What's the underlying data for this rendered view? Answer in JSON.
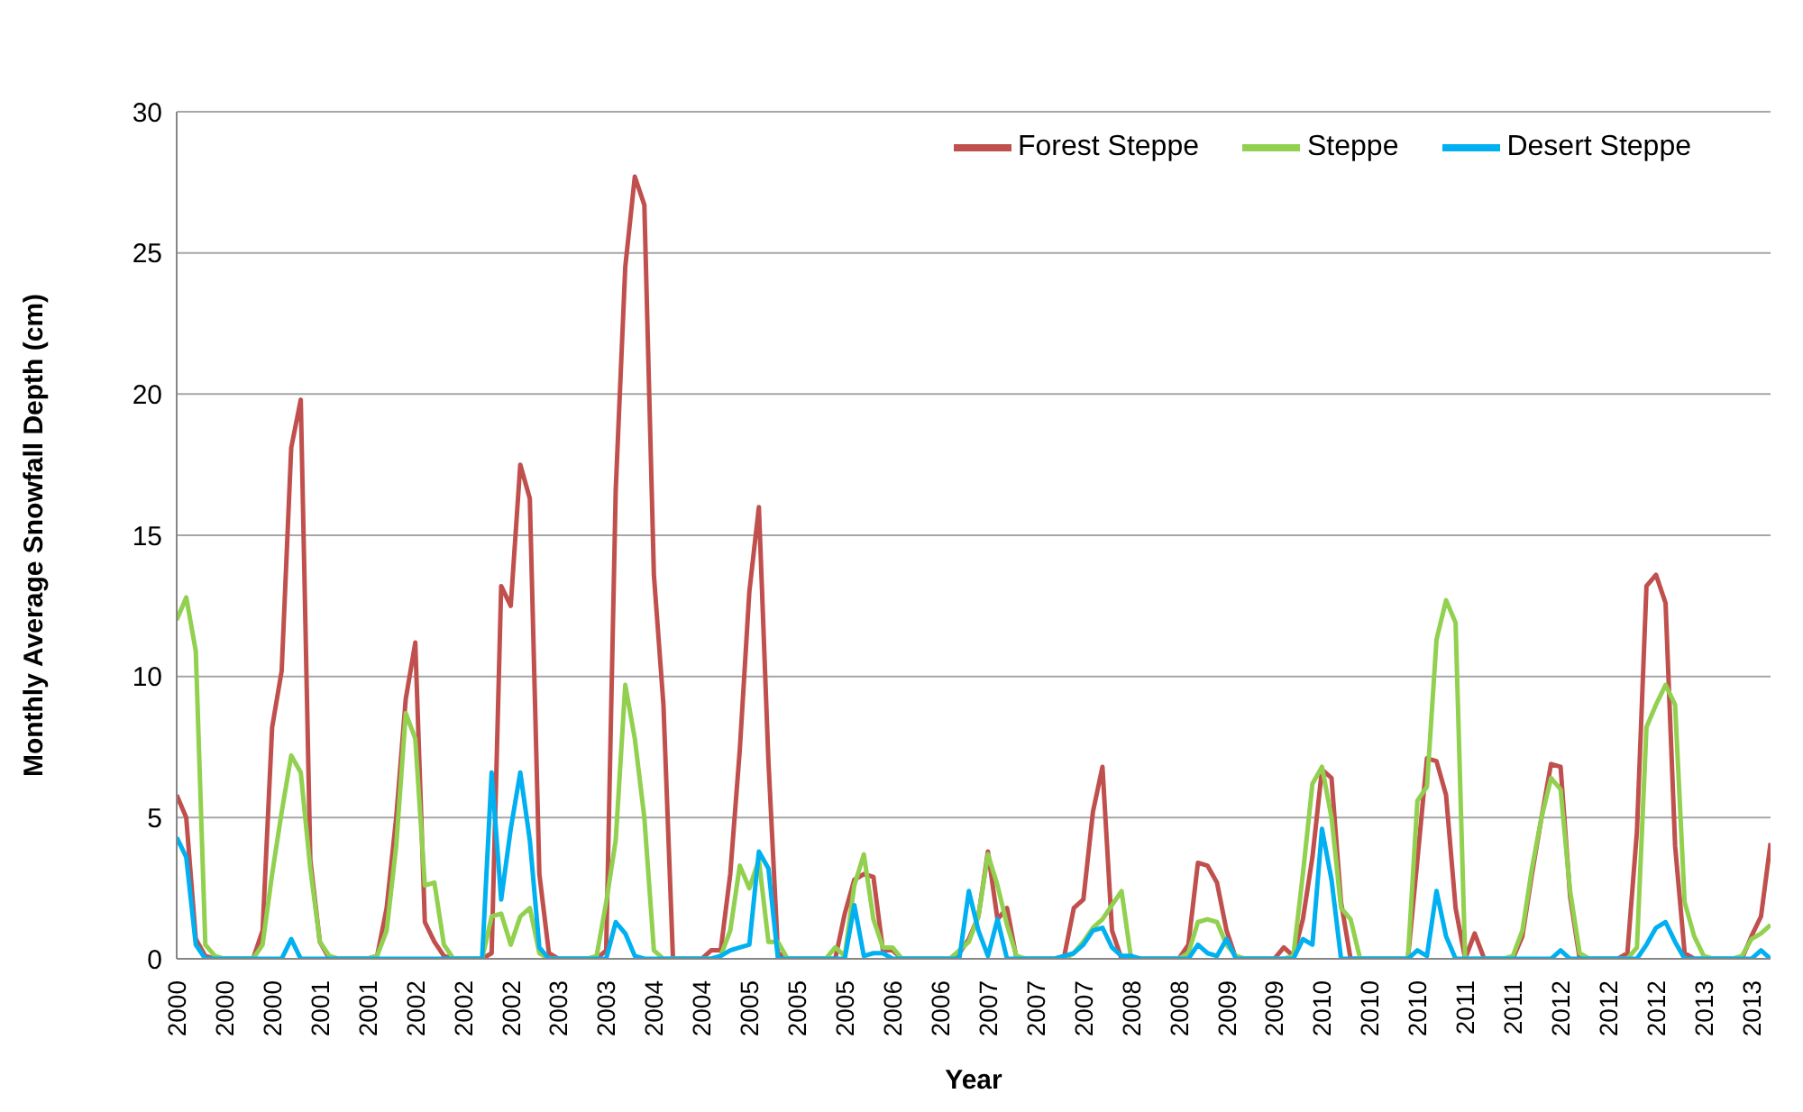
{
  "chart_data": {
    "type": "line",
    "xlabel": "Year",
    "ylabel": "Monthly Average Snowfall Depth (cm)",
    "categories": [
      "2000",
      null,
      null,
      null,
      null,
      "2000",
      null,
      null,
      null,
      null,
      "2000",
      null,
      null,
      null,
      null,
      "2001",
      null,
      null,
      null,
      null,
      "2001",
      null,
      null,
      null,
      null,
      "2002",
      null,
      null,
      null,
      null,
      "2002",
      null,
      null,
      null,
      null,
      "2002",
      null,
      null,
      null,
      null,
      "2003",
      null,
      null,
      null,
      null,
      "2003",
      null,
      null,
      null,
      null,
      "2004",
      null,
      null,
      null,
      null,
      "2004",
      null,
      null,
      null,
      null,
      "2005",
      null,
      null,
      null,
      null,
      "2005",
      null,
      null,
      null,
      null,
      "2005",
      null,
      null,
      null,
      null,
      "2006",
      null,
      null,
      null,
      null,
      "2006",
      null,
      null,
      null,
      null,
      "2007",
      null,
      null,
      null,
      null,
      "2007",
      null,
      null,
      null,
      null,
      "2007",
      null,
      null,
      null,
      null,
      "2008",
      null,
      null,
      null,
      null,
      "2008",
      null,
      null,
      null,
      null,
      "2009",
      null,
      null,
      null,
      null,
      "2009",
      null,
      null,
      null,
      null,
      "2010",
      null,
      null,
      null,
      null,
      "2010",
      null,
      null,
      null,
      null,
      "2010",
      null,
      null,
      null,
      null,
      "2011",
      null,
      null,
      null,
      null,
      "2011",
      null,
      null,
      null,
      null,
      "2012",
      null,
      null,
      null,
      null,
      "2012",
      null,
      null,
      null,
      null,
      "2012",
      null,
      null,
      null,
      null,
      "2013",
      null,
      null,
      null,
      null,
      "2013",
      null,
      null
    ],
    "series": [
      {
        "name": "Forest Steppe",
        "color": "#c0504d",
        "values": [
          5.8,
          5.0,
          0.7,
          0.1,
          0,
          0,
          0,
          0,
          0,
          1.0,
          8.2,
          10.2,
          18.1,
          19.8,
          3.5,
          0.6,
          0,
          0,
          0,
          0,
          0,
          0.1,
          1.8,
          5.0,
          9.2,
          11.2,
          1.3,
          0.6,
          0.1,
          0,
          0,
          0,
          0,
          0.2,
          13.2,
          12.5,
          17.5,
          16.3,
          3.0,
          0.2,
          0,
          0,
          0,
          0,
          0,
          0.3,
          16.6,
          24.5,
          27.7,
          26.7,
          13.6,
          9.0,
          0,
          0,
          0,
          0,
          0.3,
          0.3,
          3.0,
          7.4,
          13.0,
          16.0,
          7.0,
          0.2,
          0,
          0,
          0,
          0,
          0,
          0,
          1.6,
          2.8,
          3.0,
          2.9,
          0.3,
          0.3,
          0,
          0,
          0,
          0,
          0,
          0,
          0.2,
          0.7,
          1.5,
          3.8,
          1.4,
          1.8,
          0,
          0,
          0,
          0,
          0,
          0.1,
          1.8,
          2.1,
          5.2,
          6.8,
          1.0,
          0,
          0,
          0,
          0,
          0,
          0,
          0,
          0.5,
          3.4,
          3.3,
          2.7,
          1.0,
          0,
          0,
          0,
          0,
          0,
          0.4,
          0.1,
          1.4,
          3.6,
          6.7,
          6.4,
          2.0,
          0,
          0,
          0,
          0,
          0,
          0,
          0,
          3.5,
          7.1,
          7.0,
          5.8,
          1.8,
          0,
          0.9,
          0,
          0,
          0,
          0,
          0.8,
          3.0,
          5.0,
          6.9,
          6.8,
          2.2,
          0,
          0,
          0,
          0,
          0,
          0.2,
          4.5,
          13.2,
          13.6,
          12.6,
          4.0,
          0.2,
          0,
          0,
          0,
          0,
          0,
          0,
          0.8,
          1.5,
          4.1
        ]
      },
      {
        "name": "Steppe",
        "color": "#92d050",
        "values": [
          12.0,
          12.8,
          10.9,
          0.5,
          0.1,
          0,
          0,
          0,
          0,
          0.5,
          3.0,
          5.2,
          7.2,
          6.6,
          3.2,
          0.6,
          0.1,
          0,
          0,
          0,
          0,
          0.1,
          1.0,
          4.0,
          8.7,
          7.8,
          2.6,
          2.7,
          0.5,
          0,
          0,
          0,
          0,
          1.5,
          1.6,
          0.5,
          1.5,
          1.8,
          0.2,
          0,
          0,
          0,
          0,
          0,
          0.1,
          2.0,
          4.2,
          9.7,
          7.8,
          5.0,
          0.3,
          0,
          0,
          0,
          0,
          0,
          0,
          0.1,
          1.0,
          3.3,
          2.5,
          3.5,
          0.6,
          0.6,
          0,
          0,
          0,
          0,
          0,
          0.4,
          0.1,
          2.6,
          3.7,
          1.4,
          0.4,
          0.4,
          0,
          0,
          0,
          0,
          0,
          0,
          0.3,
          0.6,
          1.5,
          3.7,
          2.6,
          1.2,
          0.1,
          0,
          0,
          0,
          0,
          0,
          0.2,
          0.6,
          1.1,
          1.4,
          1.9,
          2.4,
          0,
          0,
          0,
          0,
          0,
          0,
          0.2,
          1.3,
          1.4,
          1.3,
          0.5,
          0.1,
          0,
          0,
          0,
          0,
          0,
          0.1,
          3.0,
          6.2,
          6.8,
          5.0,
          1.8,
          1.4,
          0,
          0,
          0,
          0,
          0,
          0,
          5.6,
          6.1,
          11.3,
          12.7,
          11.9,
          0,
          0,
          0,
          0,
          0,
          0.1,
          1.0,
          3.2,
          5.0,
          6.4,
          6.0,
          2.4,
          0.2,
          0,
          0,
          0,
          0,
          0,
          0.4,
          8.2,
          9.0,
          9.7,
          9.0,
          2.0,
          0.8,
          0.1,
          0,
          0,
          0,
          0.1,
          0.7,
          0.9,
          1.2
        ]
      },
      {
        "name": "Desert Steppe",
        "color": "#00b0f0",
        "values": [
          4.3,
          3.6,
          0.5,
          0,
          0,
          0,
          0,
          0,
          0,
          0,
          0,
          0,
          0.7,
          0,
          0,
          0,
          0,
          0,
          0,
          0,
          0,
          0,
          0,
          0,
          0,
          0,
          0,
          0,
          0,
          0,
          0,
          0,
          0,
          6.6,
          2.1,
          4.6,
          6.6,
          4.2,
          0.4,
          0,
          0,
          0,
          0,
          0,
          0,
          0,
          1.3,
          0.9,
          0.1,
          0,
          0,
          0,
          0,
          0,
          0,
          0,
          0,
          0.1,
          0.3,
          0.4,
          0.5,
          3.8,
          3.2,
          0,
          0,
          0,
          0,
          0,
          0,
          0,
          0,
          1.9,
          0.1,
          0.2,
          0.2,
          0,
          0,
          0,
          0,
          0,
          0,
          0,
          0,
          2.4,
          1.0,
          0.1,
          1.4,
          0,
          0,
          0,
          0,
          0,
          0,
          0.1,
          0.2,
          0.5,
          1.0,
          1.1,
          0.4,
          0.1,
          0.1,
          0,
          0,
          0,
          0,
          0,
          0,
          0.5,
          0.2,
          0.1,
          0.7,
          0,
          0,
          0,
          0,
          0,
          0,
          0,
          0.7,
          0.5,
          4.6,
          2.8,
          0,
          0,
          0,
          0,
          0,
          0,
          0,
          0,
          0.3,
          0.1,
          2.4,
          0.8,
          0,
          0,
          0,
          0,
          0,
          0,
          0,
          0,
          0,
          0,
          0,
          0.3,
          0,
          0,
          0,
          0,
          0,
          0,
          0,
          0,
          0.5,
          1.1,
          1.3,
          0.6,
          0,
          0,
          0,
          0,
          0,
          0,
          0,
          0,
          0.3,
          0
        ]
      }
    ],
    "ylim": [
      0,
      30
    ],
    "yticks": [
      0,
      5,
      10,
      15,
      20,
      25,
      30
    ],
    "grid": "y",
    "legend": "top right"
  }
}
